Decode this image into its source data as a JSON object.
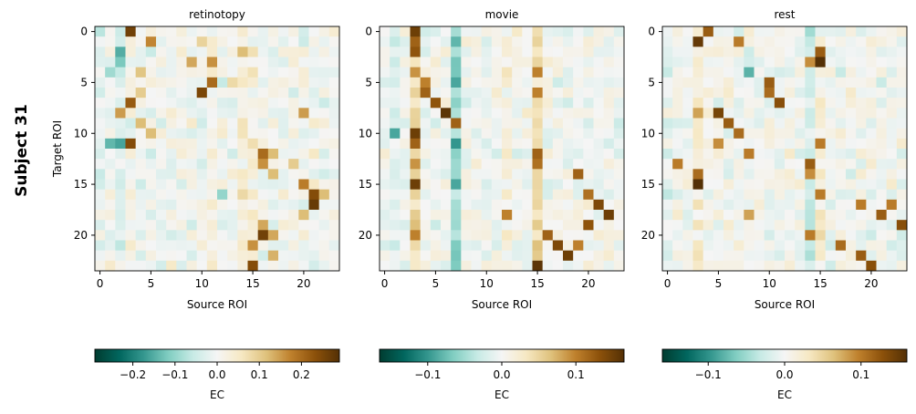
{
  "figure": {
    "row_label": "Subject 31"
  },
  "chart_data": [
    {
      "type": "heatmap",
      "title": "retinotopy",
      "xlabel": "Source ROI",
      "ylabel": "Target ROI",
      "size": 24,
      "xticks": [
        "0",
        "5",
        "10",
        "15",
        "20"
      ],
      "yticks": [
        "0",
        "5",
        "10",
        "15",
        "20"
      ],
      "colormap": "BrBG_r",
      "vmin": -0.29,
      "vmax": 0.29,
      "colorbar_label": "EC",
      "colorbar_ticks": [
        -0.2,
        -0.1,
        0.0,
        0.1,
        0.2
      ],
      "colorbar_tick_labels": [
        "−0.2",
        "−0.1",
        "0.0",
        "0.1",
        "0.2"
      ],
      "seed": 31,
      "strong_cells": [
        [
          0,
          3,
          0.26
        ],
        [
          1,
          5,
          0.17
        ],
        [
          1,
          10,
          0.09
        ],
        [
          2,
          14,
          0.12
        ],
        [
          3,
          9,
          0.14
        ],
        [
          3,
          11,
          0.16
        ],
        [
          4,
          4,
          0.11
        ],
        [
          5,
          11,
          0.2
        ],
        [
          5,
          13,
          0.08
        ],
        [
          6,
          10,
          0.25
        ],
        [
          6,
          4,
          0.1
        ],
        [
          7,
          3,
          0.22
        ],
        [
          8,
          2,
          0.15
        ],
        [
          8,
          20,
          0.15
        ],
        [
          9,
          4,
          0.12
        ],
        [
          10,
          5,
          0.12
        ],
        [
          11,
          1,
          -0.14
        ],
        [
          11,
          3,
          0.24
        ],
        [
          11,
          2,
          -0.16
        ],
        [
          12,
          16,
          0.2
        ],
        [
          12,
          17,
          0.12
        ],
        [
          13,
          16,
          0.16
        ],
        [
          13,
          19,
          0.1
        ],
        [
          14,
          17,
          0.12
        ],
        [
          15,
          20,
          0.18
        ],
        [
          16,
          21,
          0.24
        ],
        [
          16,
          22,
          0.12
        ],
        [
          17,
          21,
          0.27
        ],
        [
          18,
          20,
          0.12
        ],
        [
          19,
          16,
          0.14
        ],
        [
          20,
          16,
          0.26
        ],
        [
          20,
          17,
          0.14
        ],
        [
          21,
          15,
          0.16
        ],
        [
          22,
          17,
          0.13
        ],
        [
          23,
          15,
          0.24
        ],
        [
          2,
          2,
          -0.15
        ],
        [
          3,
          2,
          -0.12
        ],
        [
          16,
          12,
          -0.1
        ],
        [
          4,
          1,
          -0.09
        ]
      ],
      "column_bias": {
        "0": -0.02,
        "2": -0.03,
        "11": 0.02,
        "14": 0.03,
        "15": 0.03
      }
    },
    {
      "type": "heatmap",
      "title": "movie",
      "xlabel": "Source ROI",
      "ylabel": "",
      "size": 24,
      "xticks": [
        "0",
        "5",
        "10",
        "15",
        "20"
      ],
      "yticks": [
        "0",
        "5",
        "10",
        "15",
        "20"
      ],
      "colormap": "BrBG_r",
      "vmin": -0.165,
      "vmax": 0.165,
      "colorbar_label": "EC",
      "colorbar_ticks": [
        -0.1,
        0.0,
        0.1
      ],
      "colorbar_tick_labels": [
        "−0.1",
        "0.0",
        "0.1"
      ],
      "seed": 57,
      "strong_cells": [
        [
          0,
          3,
          0.15
        ],
        [
          1,
          3,
          0.12
        ],
        [
          1,
          7,
          -0.08
        ],
        [
          2,
          3,
          0.13
        ],
        [
          3,
          7,
          -0.07
        ],
        [
          4,
          3,
          0.09
        ],
        [
          4,
          15,
          0.1
        ],
        [
          5,
          4,
          0.1
        ],
        [
          5,
          7,
          -0.09
        ],
        [
          6,
          15,
          0.1
        ],
        [
          6,
          4,
          0.12
        ],
        [
          7,
          5,
          0.13
        ],
        [
          8,
          6,
          0.16
        ],
        [
          9,
          7,
          0.12
        ],
        [
          10,
          3,
          0.15
        ],
        [
          10,
          1,
          -0.09
        ],
        [
          11,
          3,
          0.12
        ],
        [
          11,
          7,
          -0.1
        ],
        [
          12,
          15,
          0.12
        ],
        [
          13,
          3,
          0.09
        ],
        [
          13,
          15,
          0.11
        ],
        [
          14,
          19,
          0.12
        ],
        [
          15,
          3,
          0.15
        ],
        [
          15,
          7,
          -0.09
        ],
        [
          16,
          20,
          0.11
        ],
        [
          17,
          21,
          0.14
        ],
        [
          18,
          12,
          0.1
        ],
        [
          18,
          22,
          0.15
        ],
        [
          19,
          20,
          0.13
        ],
        [
          20,
          16,
          0.12
        ],
        [
          20,
          3,
          0.1
        ],
        [
          21,
          17,
          0.14
        ],
        [
          22,
          18,
          0.15
        ],
        [
          23,
          15,
          0.16
        ],
        [
          21,
          19,
          0.1
        ]
      ],
      "column_bias": {
        "3": 0.04,
        "7": -0.05,
        "15": 0.04,
        "1": -0.015,
        "12": 0.015
      }
    },
    {
      "type": "heatmap",
      "title": "rest",
      "xlabel": "Source ROI",
      "ylabel": "",
      "size": 24,
      "xticks": [
        "0",
        "5",
        "10",
        "15",
        "20"
      ],
      "yticks": [
        "0",
        "5",
        "10",
        "15",
        "20"
      ],
      "colormap": "BrBG_r",
      "vmin": -0.16,
      "vmax": 0.16,
      "colorbar_label": "EC",
      "colorbar_ticks": [
        -0.1,
        0.0,
        0.1
      ],
      "colorbar_tick_labels": [
        "−0.1",
        "0.0",
        "0.1"
      ],
      "seed": 83,
      "strong_cells": [
        [
          0,
          4,
          0.12
        ],
        [
          1,
          3,
          0.15
        ],
        [
          1,
          7,
          0.1
        ],
        [
          2,
          15,
          0.12
        ],
        [
          3,
          14,
          0.09
        ],
        [
          3,
          15,
          0.16
        ],
        [
          4,
          8,
          -0.08
        ],
        [
          5,
          10,
          0.12
        ],
        [
          6,
          10,
          0.11
        ],
        [
          7,
          11,
          0.13
        ],
        [
          8,
          3,
          0.08
        ],
        [
          8,
          5,
          0.14
        ],
        [
          9,
          6,
          0.12
        ],
        [
          10,
          7,
          0.11
        ],
        [
          11,
          5,
          0.09
        ],
        [
          11,
          15,
          0.1
        ],
        [
          12,
          8,
          0.1
        ],
        [
          13,
          1,
          0.1
        ],
        [
          14,
          3,
          0.11
        ],
        [
          14,
          14,
          0.09
        ],
        [
          15,
          3,
          0.17
        ],
        [
          16,
          15,
          0.1
        ],
        [
          17,
          19,
          0.1
        ],
        [
          18,
          21,
          0.12
        ],
        [
          19,
          23,
          0.13
        ],
        [
          20,
          14,
          0.1
        ],
        [
          21,
          17,
          0.11
        ],
        [
          22,
          19,
          0.12
        ],
        [
          23,
          20,
          0.13
        ],
        [
          13,
          14,
          0.12
        ],
        [
          17,
          22,
          0.1
        ],
        [
          18,
          8,
          0.08
        ]
      ],
      "column_bias": {
        "3": 0.025,
        "14": -0.02,
        "15": 0.02,
        "0": -0.01
      }
    }
  ]
}
